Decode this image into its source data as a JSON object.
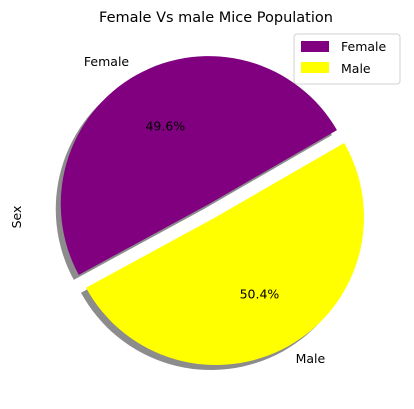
{
  "chart_data": {
    "type": "pie",
    "title": "Female Vs male Mice Population",
    "ylabel": "Sex",
    "slices": [
      {
        "label": "Female",
        "percent_label": "49.6%",
        "value": 49.6,
        "color": "#800080",
        "explode": 0.1
      },
      {
        "label": "Male",
        "percent_label": "50.4%",
        "value": 50.4,
        "color": "#ffff00",
        "explode": 0
      }
    ],
    "start_angle_deg": 30,
    "shadow": true,
    "legend": {
      "position": "top-right",
      "entries": [
        "Female",
        "Male"
      ]
    }
  }
}
